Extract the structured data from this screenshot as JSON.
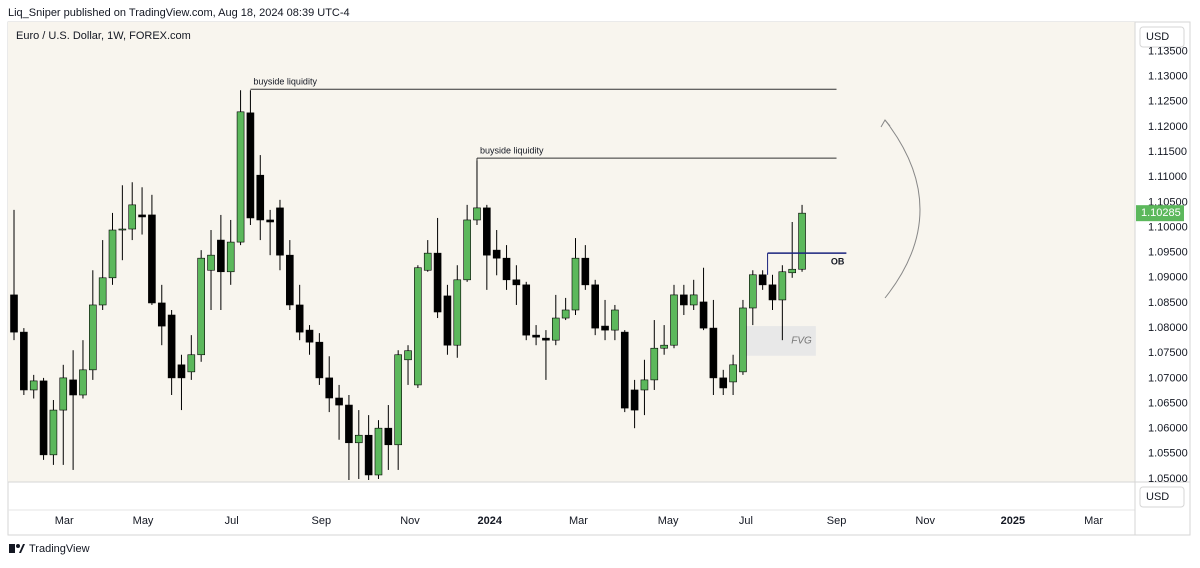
{
  "header": {
    "byline": "Liq_Sniper published on TradingView.com, Aug 18, 2024 08:39 UTC-4",
    "footer": "TradingView"
  },
  "chart_data": {
    "type": "candlestick",
    "title": "Euro / U.S. Dollar, 1W, FOREX.com",
    "currency": "USD",
    "up_color": "#5cb85c",
    "down_color": "#000000",
    "background": "#f8f5ee",
    "grid": false,
    "open": [
      1.0866,
      1.0792,
      1.0677,
      1.0695,
      1.0548,
      1.0637,
      1.0697,
      1.0667,
      1.0717,
      1.0846,
      1.09,
      1.0995,
      1.0997,
      1.1025,
      1.1025,
      1.085,
      1.0826,
      1.0727,
      1.0713,
      1.0747,
      1.0915,
      1.0975,
      1.0912,
      1.0971,
      1.1228,
      1.1104,
      1.1015,
      1.1039,
      1.0945,
      1.0846,
      1.0796,
      1.0772,
      1.0701,
      1.0661,
      1.0647,
      1.0572,
      1.0587,
      1.0508,
      1.0601,
      1.0568,
      1.0737,
      1.0687,
      1.0915,
      1.0949,
      1.0864,
      1.0766,
      1.0896,
      1.1015,
      1.1039,
      1.0955,
      1.0939,
      1.0896,
      1.0886,
      1.0786,
      1.078,
      1.0776,
      1.082,
      1.0836,
      1.0939,
      1.0886,
      1.0804,
      1.0796,
      1.0792,
      1.0677,
      1.0677,
      1.0697,
      1.076,
      1.0766,
      1.0866,
      1.0846,
      1.0852,
      1.08,
      1.0701,
      1.0693,
      1.0713,
      1.084,
      1.0906,
      1.0886,
      1.0856,
      1.091,
      1.0917
    ],
    "high": [
      1.1035,
      1.08,
      1.0707,
      1.0701,
      1.0657,
      1.0727,
      1.0756,
      1.0776,
      1.0915,
      1.0975,
      1.1029,
      1.1084,
      1.109,
      1.108,
      1.1065,
      1.0886,
      1.0836,
      1.0747,
      1.0786,
      1.0955,
      1.0995,
      1.1025,
      1.1015,
      1.1273,
      1.1273,
      1.1144,
      1.1035,
      1.1055,
      1.0975,
      1.0886,
      1.0806,
      1.079,
      1.0744,
      1.0687,
      1.0667,
      1.0637,
      1.0627,
      1.0617,
      1.0647,
      1.0756,
      1.0766,
      1.0925,
      1.0975,
      1.1019,
      1.0886,
      1.0925,
      1.1045,
      1.1134,
      1.1045,
      1.0995,
      1.0965,
      1.0925,
      1.0892,
      1.0806,
      1.0796,
      1.0866,
      1.086,
      1.0979,
      1.0965,
      1.0896,
      1.0856,
      1.0846,
      1.0796,
      1.0697,
      1.0737,
      1.0816,
      1.0806,
      1.0886,
      1.0886,
      1.0896,
      1.092,
      1.0856,
      1.0717,
      1.0747,
      1.0856,
      1.0915,
      1.0915,
      1.0906,
      1.0925,
      1.1011,
      1.1045
    ],
    "low": [
      1.0776,
      1.0667,
      1.066,
      1.0538,
      1.0528,
      1.0528,
      1.0518,
      1.066,
      1.0697,
      1.0836,
      1.0886,
      1.0935,
      1.0975,
      1.0986,
      1.0846,
      1.0766,
      1.0667,
      1.0637,
      1.0697,
      1.0733,
      1.0836,
      1.0836,
      1.0886,
      1.0965,
      1.1005,
      1.0975,
      1.0945,
      1.0915,
      1.0836,
      1.0776,
      1.0747,
      1.0687,
      1.0633,
      1.0578,
      1.0498,
      1.05,
      1.0498,
      1.05,
      1.0518,
      1.0518,
      1.0687,
      1.0681,
      1.0912,
      1.082,
      1.0747,
      1.0741,
      1.0892,
      1.1005,
      1.0876,
      1.0905,
      1.0876,
      1.0846,
      1.0776,
      1.0766,
      1.0697,
      1.0766,
      1.0816,
      1.0826,
      1.0876,
      1.0786,
      1.0776,
      1.0776,
      1.0633,
      1.0601,
      1.0627,
      1.0677,
      1.0747,
      1.076,
      1.0826,
      1.0836,
      1.0796,
      1.0667,
      1.0667,
      1.0667,
      1.0707,
      1.0806,
      1.0876,
      1.0836,
      1.0776,
      1.09,
      1.0912
    ],
    "close": [
      1.0792,
      1.0677,
      1.0695,
      1.0548,
      1.0637,
      1.0701,
      1.0667,
      1.0717,
      1.0846,
      1.09,
      1.0995,
      1.0997,
      1.1045,
      1.1021,
      1.085,
      1.0804,
      1.0701,
      1.0701,
      1.0747,
      1.0939,
      1.0945,
      1.0912,
      1.0971,
      1.123,
      1.1019,
      1.1015,
      1.1011,
      1.0945,
      1.0846,
      1.0792,
      1.0772,
      1.0701,
      1.0661,
      1.0647,
      1.0572,
      1.0587,
      1.0508,
      1.0601,
      1.0568,
      1.0747,
      1.0755,
      1.092,
      1.0949,
      1.0832,
      1.0766,
      1.0896,
      1.1015,
      1.1039,
      1.0945,
      1.0939,
      1.0896,
      1.0886,
      1.0786,
      1.0782,
      1.0776,
      1.082,
      1.0836,
      1.0939,
      1.0886,
      1.08,
      1.0796,
      1.0836,
      1.0641,
      1.0637,
      1.0697,
      1.076,
      1.0766,
      1.0866,
      1.0846,
      1.0866,
      1.08,
      1.0701,
      1.0681,
      1.0727,
      1.084,
      1.0906,
      1.0886,
      1.0856,
      1.0912,
      1.0917,
      1.10285
    ],
    "xlim": [
      -0.61,
      113.8
    ],
    "xticks": [
      {
        "value": 5.1,
        "label": "Mar"
      },
      {
        "value": 13.1,
        "label": "May"
      },
      {
        "value": 22.1,
        "label": "Jul"
      },
      {
        "value": 31.2,
        "label": "Sep"
      },
      {
        "value": 40.2,
        "label": "Nov"
      },
      {
        "value": 48.3,
        "label": "2024"
      },
      {
        "value": 57.3,
        "label": "Mar"
      },
      {
        "value": 66.4,
        "label": "May"
      },
      {
        "value": 74.3,
        "label": "Jul"
      },
      {
        "value": 83.5,
        "label": "Sep"
      },
      {
        "value": 92.5,
        "label": "Nov"
      },
      {
        "value": 101.4,
        "label": "2025"
      },
      {
        "value": 109.6,
        "label": "Mar"
      }
    ],
    "ylim": [
      1.0494,
      1.14086
    ],
    "yticks": [
      {
        "value": 1.05,
        "label": "1.05000"
      },
      {
        "value": 1.055,
        "label": "1.05500"
      },
      {
        "value": 1.06,
        "label": "1.06000"
      },
      {
        "value": 1.065,
        "label": "1.06500"
      },
      {
        "value": 1.07,
        "label": "1.07000"
      },
      {
        "value": 1.075,
        "label": "1.07500"
      },
      {
        "value": 1.08,
        "label": "1.08000"
      },
      {
        "value": 1.085,
        "label": "1.08500"
      },
      {
        "value": 1.09,
        "label": "1.09000"
      },
      {
        "value": 1.095,
        "label": "1.09500"
      },
      {
        "value": 1.1,
        "label": "1.10000"
      },
      {
        "value": 1.105,
        "label": "1.10500"
      },
      {
        "value": 1.11,
        "label": "1.11000"
      },
      {
        "value": 1.115,
        "label": "1.11500"
      },
      {
        "value": 1.12,
        "label": "1.12000"
      },
      {
        "value": 1.125,
        "label": "1.12500"
      },
      {
        "value": 1.13,
        "label": "1.13000"
      },
      {
        "value": 1.135,
        "label": "1.13500"
      }
    ],
    "annotations": [
      {
        "text": "buyside liquidity",
        "price": 1.1275,
        "from": 24,
        "to": 83.5,
        "color": "#333333"
      },
      {
        "text": "buyside liquidity",
        "price": 1.1138,
        "from": 47,
        "to": 83.5,
        "color": "#333333"
      },
      {
        "text": "OB",
        "price": 1.0949,
        "from": 76.5,
        "to": 84.5,
        "color": "#1a237e"
      }
    ],
    "zones": [
      {
        "text": "FVG",
        "top": 1.0804,
        "bottom": 1.0745,
        "from": 73.7,
        "to": 81.4,
        "color": "#e8e8e8"
      }
    ]
  }
}
